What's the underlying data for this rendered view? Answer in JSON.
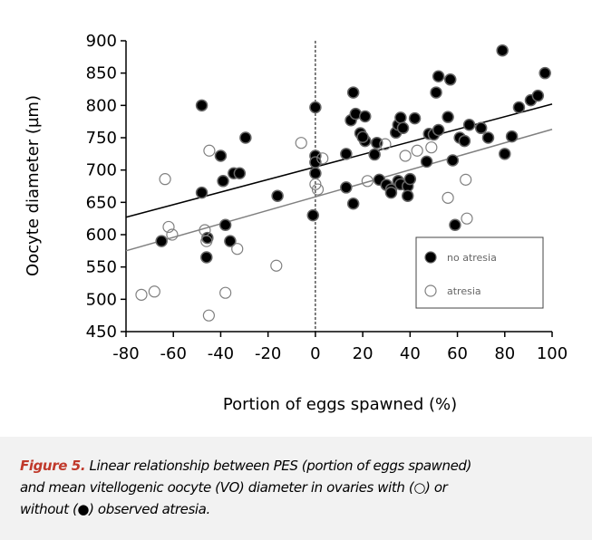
{
  "chart_data": {
    "type": "scatter",
    "xlabel": "Portion of eggs spawned (%)",
    "ylabel": "Oocyte diameter (µm)",
    "xlim": [
      -80,
      100
    ],
    "xticks": [
      -80,
      -60,
      -40,
      -20,
      0,
      20,
      40,
      60,
      80,
      100
    ],
    "ylim": [
      450,
      900
    ],
    "yticks": [
      450,
      500,
      550,
      600,
      650,
      700,
      750,
      800,
      850,
      900
    ],
    "vline": 0,
    "legend": "lower right",
    "series": [
      {
        "name": "no atresia",
        "color": "#000000",
        "marker": "filled",
        "x": [
          -48,
          -40,
          -39,
          -29.5,
          -34.5,
          -32,
          -48,
          -38,
          -36,
          -45.6,
          -46,
          -65,
          -16,
          -1,
          0,
          0,
          0,
          0,
          13,
          13,
          16,
          15,
          17,
          21,
          19,
          21,
          20,
          16,
          25,
          26,
          27,
          30,
          32,
          32,
          34,
          35,
          36,
          35,
          37,
          36,
          39,
          39,
          42,
          40,
          47,
          48,
          50,
          51,
          52,
          52,
          56,
          57,
          58,
          59,
          61,
          63,
          65,
          70,
          73,
          79,
          80,
          83,
          86,
          91,
          94,
          97
        ],
        "y": [
          800,
          722,
          683,
          750,
          695,
          695,
          665,
          615,
          590,
          595,
          565,
          590,
          660,
          630,
          797,
          722,
          695,
          712,
          673,
          725,
          820,
          777,
          787,
          783,
          757,
          745,
          751,
          648,
          724,
          742,
          685,
          677,
          670,
          665,
          758,
          770,
          781,
          683,
          765,
          678,
          675,
          660,
          780,
          686,
          713,
          756,
          755,
          820,
          845,
          762,
          782,
          840,
          715,
          615,
          750,
          745,
          770,
          765,
          750,
          885,
          725,
          752,
          797,
          808,
          815,
          850
        ],
        "fit": {
          "x": [
            -80,
            100
          ],
          "y": [
            627,
            802
          ]
        }
      },
      {
        "name": "atresia",
        "color": "#808080",
        "marker": "open",
        "x": [
          -73.5,
          -68,
          -63.5,
          -62,
          -60.5,
          -46.7,
          -44.8,
          -46,
          -33,
          -38,
          -45,
          -16.5,
          -6,
          0,
          1,
          3,
          22,
          29.5,
          38,
          43,
          49,
          56,
          63.5,
          64
        ],
        "y": [
          507,
          512,
          686,
          612,
          600,
          607,
          730,
          590,
          578,
          510,
          475,
          552,
          742,
          678,
          670,
          718,
          683,
          740,
          722,
          730,
          735,
          657,
          685,
          625
        ],
        "fit": {
          "x": [
            -80,
            100
          ],
          "y": [
            575,
            763
          ]
        }
      }
    ]
  },
  "caption": {
    "label": "Figure 5.",
    "lines": [
      " Linear relationship between PES (portion of eggs spawned)",
      "and mean vitellogenic oocyte (VO) diameter in ovaries with (○) or",
      "without (●) observed atresia."
    ]
  }
}
